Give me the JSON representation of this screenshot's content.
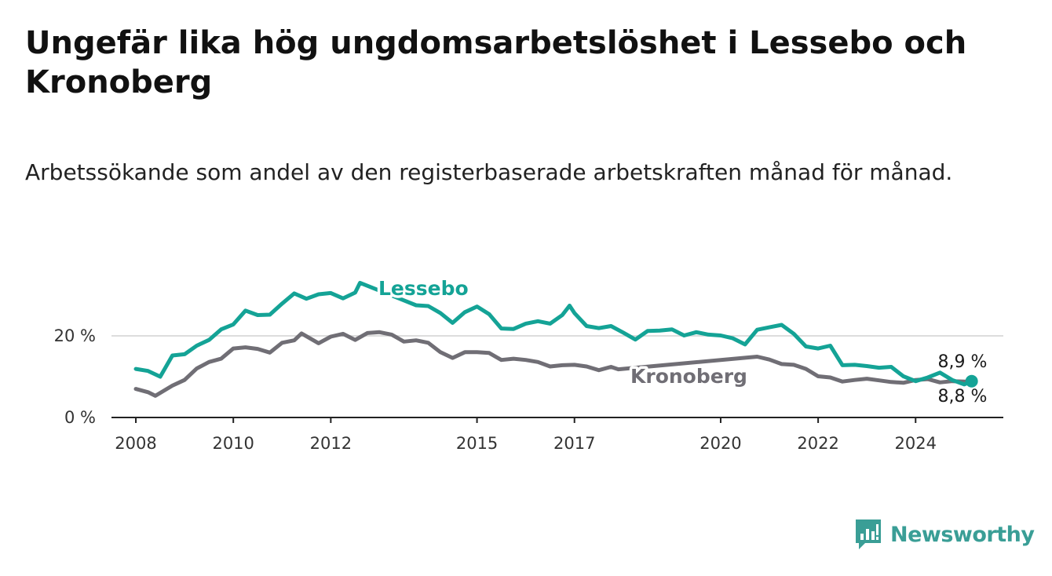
{
  "header": {
    "title": "Ungefär lika hög ungdomsarbetslöshet i Lessebo och Kronoberg",
    "subtitle": "Arbetssökande som andel av den registerbaserade arbetskraften månad för månad."
  },
  "brand": {
    "name": "Newsworthy",
    "icon": "bar-chart-logo-icon",
    "color": "#3a9e96"
  },
  "colors": {
    "lessebo": "#14a396",
    "kronoberg": "#706e75",
    "axis": "#222222",
    "grid": "#dddddd"
  },
  "chart_data": {
    "type": "line",
    "title": "Ungefär lika hög ungdomsarbetslöshet i Lessebo och Kronoberg",
    "subtitle": "Arbetssökande som andel av den registerbaserade arbetskraften månad för månad.",
    "x_ticks": [
      "2008",
      "2010",
      "2012",
      "2015",
      "2017",
      "2020",
      "2022",
      "2024"
    ],
    "y_ticks": [
      "0 %",
      "20 %"
    ],
    "y_tick_values": [
      0,
      20
    ],
    "ylim": [
      0,
      35
    ],
    "xlim": [
      2007.5,
      2025.8
    ],
    "grid": "horizontal",
    "series": [
      {
        "name": "Lessebo",
        "color": "#14a396",
        "end_label": "8,9 %",
        "points": [
          [
            2008.0,
            11.9
          ],
          [
            2008.25,
            11.4
          ],
          [
            2008.5,
            10.0
          ],
          [
            2008.75,
            15.2
          ],
          [
            2009.0,
            15.5
          ],
          [
            2009.25,
            17.6
          ],
          [
            2009.5,
            19.0
          ],
          [
            2009.75,
            21.6
          ],
          [
            2010.0,
            22.8
          ],
          [
            2010.25,
            26.2
          ],
          [
            2010.5,
            25.1
          ],
          [
            2010.75,
            25.2
          ],
          [
            2011.0,
            27.9
          ],
          [
            2011.25,
            30.4
          ],
          [
            2011.5,
            29.1
          ],
          [
            2011.75,
            30.2
          ],
          [
            2012.0,
            30.5
          ],
          [
            2012.25,
            29.2
          ],
          [
            2012.5,
            30.6
          ],
          [
            2012.6,
            33.0
          ],
          [
            2013.75,
            27.5
          ],
          [
            2014.0,
            27.3
          ],
          [
            2014.25,
            25.6
          ],
          [
            2014.5,
            23.2
          ],
          [
            2014.75,
            25.8
          ],
          [
            2015.0,
            27.2
          ],
          [
            2015.25,
            25.3
          ],
          [
            2015.5,
            21.8
          ],
          [
            2015.75,
            21.7
          ],
          [
            2016.0,
            23.0
          ],
          [
            2016.25,
            23.6
          ],
          [
            2016.5,
            23.0
          ],
          [
            2016.75,
            25.1
          ],
          [
            2016.9,
            27.4
          ],
          [
            2017.0,
            25.6
          ],
          [
            2017.25,
            22.4
          ],
          [
            2017.5,
            21.9
          ],
          [
            2017.75,
            22.4
          ],
          [
            2018.0,
            20.8
          ],
          [
            2018.25,
            19.1
          ],
          [
            2018.5,
            21.2
          ],
          [
            2018.75,
            21.3
          ],
          [
            2019.0,
            21.6
          ],
          [
            2019.25,
            20.1
          ],
          [
            2019.5,
            20.9
          ],
          [
            2019.75,
            20.3
          ],
          [
            2020.0,
            20.1
          ],
          [
            2020.25,
            19.4
          ],
          [
            2020.5,
            17.9
          ],
          [
            2020.75,
            21.5
          ],
          [
            2021.0,
            22.1
          ],
          [
            2021.25,
            22.7
          ],
          [
            2021.5,
            20.5
          ],
          [
            2021.75,
            17.4
          ],
          [
            2022.0,
            16.9
          ],
          [
            2022.25,
            17.6
          ],
          [
            2022.5,
            12.8
          ],
          [
            2022.75,
            12.9
          ],
          [
            2023.0,
            12.6
          ],
          [
            2023.25,
            12.2
          ],
          [
            2023.5,
            12.4
          ],
          [
            2023.75,
            10.1
          ],
          [
            2024.0,
            8.9
          ],
          [
            2024.25,
            9.8
          ],
          [
            2024.5,
            11.0
          ],
          [
            2024.75,
            9.2
          ],
          [
            2025.0,
            8.1
          ],
          [
            2025.15,
            8.9
          ]
        ]
      },
      {
        "name": "Kronoberg",
        "color": "#706e75",
        "end_label": "8,8 %",
        "points": [
          [
            2008.0,
            7.0
          ],
          [
            2008.25,
            6.2
          ],
          [
            2008.4,
            5.3
          ],
          [
            2008.75,
            7.8
          ],
          [
            2009.0,
            9.2
          ],
          [
            2009.25,
            12.0
          ],
          [
            2009.5,
            13.6
          ],
          [
            2009.75,
            14.4
          ],
          [
            2010.0,
            16.9
          ],
          [
            2010.25,
            17.2
          ],
          [
            2010.5,
            16.8
          ],
          [
            2010.75,
            15.9
          ],
          [
            2011.0,
            18.3
          ],
          [
            2011.25,
            18.9
          ],
          [
            2011.4,
            20.6
          ],
          [
            2011.75,
            18.2
          ],
          [
            2012.0,
            19.8
          ],
          [
            2012.25,
            20.5
          ],
          [
            2012.5,
            19.0
          ],
          [
            2012.75,
            20.7
          ],
          [
            2013.0,
            20.9
          ],
          [
            2013.25,
            20.3
          ],
          [
            2013.5,
            18.6
          ],
          [
            2013.75,
            18.9
          ],
          [
            2014.0,
            18.3
          ],
          [
            2014.25,
            16.0
          ],
          [
            2014.5,
            14.6
          ],
          [
            2014.75,
            16.0
          ],
          [
            2015.0,
            16.0
          ],
          [
            2015.25,
            15.8
          ],
          [
            2015.5,
            14.1
          ],
          [
            2015.75,
            14.4
          ],
          [
            2016.0,
            14.1
          ],
          [
            2016.25,
            13.6
          ],
          [
            2016.5,
            12.5
          ],
          [
            2016.75,
            12.8
          ],
          [
            2017.0,
            12.9
          ],
          [
            2017.25,
            12.5
          ],
          [
            2017.5,
            11.6
          ],
          [
            2017.75,
            12.4
          ],
          [
            2017.9,
            11.8
          ],
          [
            2020.75,
            14.9
          ],
          [
            2021.0,
            14.2
          ],
          [
            2021.25,
            13.1
          ],
          [
            2021.5,
            12.9
          ],
          [
            2021.75,
            11.9
          ],
          [
            2022.0,
            10.1
          ],
          [
            2022.25,
            9.8
          ],
          [
            2022.5,
            8.8
          ],
          [
            2022.75,
            9.2
          ],
          [
            2023.0,
            9.5
          ],
          [
            2023.25,
            9.1
          ],
          [
            2023.5,
            8.7
          ],
          [
            2023.75,
            8.5
          ],
          [
            2024.0,
            9.2
          ],
          [
            2024.25,
            9.4
          ],
          [
            2024.5,
            8.6
          ],
          [
            2024.75,
            8.9
          ],
          [
            2025.0,
            8.8
          ],
          [
            2025.15,
            8.8
          ]
        ]
      }
    ]
  }
}
